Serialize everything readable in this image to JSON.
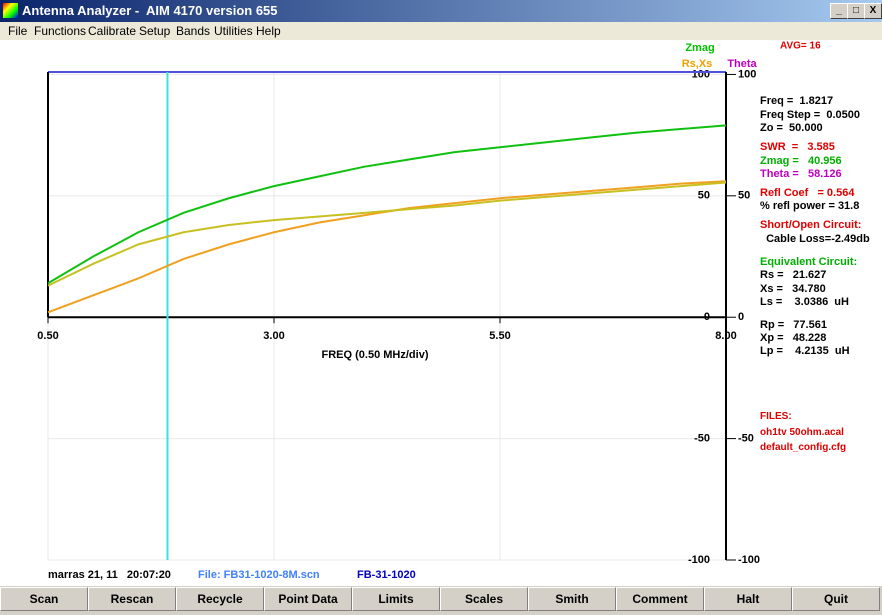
{
  "window": {
    "title": "Antenna Analyzer -  AIM 4170 version 655",
    "controls": [
      "_",
      "□",
      "X"
    ]
  },
  "menu": [
    "File",
    "Functions",
    "Calibrate",
    "Setup",
    "Bands",
    "Utilities",
    "Help"
  ],
  "chart_data": {
    "type": "line",
    "xlabel": "FREQ (0.50 MHz/div)",
    "avg": "AVG=  16",
    "legend": [
      {
        "text": "Zmag",
        "color": "#00c000"
      },
      {
        "text": "Rs,Xs",
        "color": "#f0a000"
      },
      {
        "text": "Theta",
        "color": "#c000c0"
      }
    ],
    "x": [
      0.5,
      1.0,
      1.5,
      2.0,
      2.5,
      3.0,
      3.5,
      4.0,
      4.5,
      5.0,
      5.5,
      6.0,
      6.5,
      7.0,
      7.5,
      8.0
    ],
    "series": [
      {
        "name": "Zmag",
        "color": "#10c010",
        "values": [
          14,
          25,
          35,
          43,
          49,
          54,
          58,
          62,
          65,
          68,
          70,
          72,
          74,
          76,
          77.5,
          79
        ]
      },
      {
        "name": "Rs",
        "color": "#f0a020",
        "values": [
          2,
          9,
          16,
          24,
          30,
          35,
          39,
          42,
          45,
          47,
          49,
          50.5,
          52,
          53.5,
          55,
          56
        ]
      },
      {
        "name": "Xs",
        "color": "#c8c020",
        "values": [
          13,
          22,
          30,
          35,
          38,
          40,
          41.5,
          43,
          44.5,
          46,
          48,
          49.5,
          51,
          52.5,
          54,
          55.5
        ]
      }
    ],
    "cursor": 1.8217,
    "cursor_color": "#40e0e0",
    "xlim": [
      0.5,
      8
    ],
    "xticks": [
      {
        "value": 0.5,
        "label": "0.50"
      },
      {
        "value": 3,
        "label": "3.00"
      },
      {
        "value": 5.5,
        "label": "5.50"
      },
      {
        "value": 8,
        "label": "8.00"
      }
    ],
    "ylim": [
      -100,
      101
    ],
    "yticks": [
      100,
      50,
      0,
      -50,
      -100
    ],
    "grid": true
  },
  "readout": [
    {
      "text": "Freq =  1.8217",
      "color": "#000"
    },
    {
      "text": "Freq Step =  0.0500",
      "color": "#000"
    },
    {
      "text": "Zo =  50.000",
      "color": "#000"
    },
    {
      "text": "SWR  =   3.585",
      "color": "#e00000"
    },
    {
      "text": "Zmag =   40.956",
      "color": "#00b000"
    },
    {
      "text": "Theta =   58.126",
      "color": "#c000c0"
    },
    {
      "text": "Refl Coef   = 0.564",
      "color": "#e00000"
    },
    {
      "text": "% refl power = 31.8",
      "color": "#000"
    },
    {
      "text": "Short/Open Circuit:",
      "color": "#e00000"
    },
    {
      "text": "  Cable Loss=-2.49db",
      "color": "#000"
    },
    {
      "text": "Equivalent Circuit:",
      "color": "#00b000"
    },
    {
      "text": "Rs =   21.627",
      "color": "#000"
    },
    {
      "text": "Xs =   34.780",
      "color": "#000"
    },
    {
      "text": "Ls =    3.0386  uH",
      "color": "#000"
    },
    {
      "text": "Rp =   77.561",
      "color": "#000"
    },
    {
      "text": "Xp =   48.228",
      "color": "#000"
    },
    {
      "text": "Lp =    4.2135  uH",
      "color": "#000"
    },
    {
      "text": "FILES:",
      "color": "#e00000"
    },
    {
      "text": "oh1tv 50ohm.acal",
      "color": "#e00000"
    },
    {
      "text": "default_config.cfg",
      "color": "#e00000"
    }
  ],
  "status": [
    {
      "text": "marras 21, 11   20:07:20",
      "color": "#000"
    },
    {
      "text": "File: FB31-1020-8M.scn",
      "color": "#4080ff"
    },
    {
      "text": "FB-31-1020",
      "color": "#0000c0"
    }
  ],
  "buttons": [
    "Scan",
    "Rescan",
    "Recycle",
    "Point Data",
    "Limits",
    "Scales",
    "Smith",
    "Comment",
    "Halt",
    "Quit"
  ]
}
